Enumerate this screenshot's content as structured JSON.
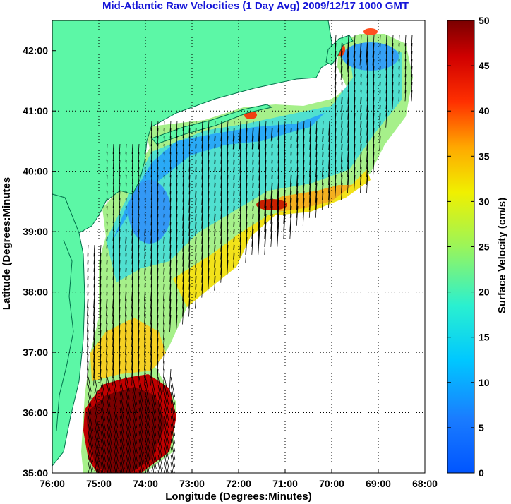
{
  "chart_data": {
    "type": "heatmap",
    "title": "Mid-Atlantic Raw Velocities (1 Day Avg) 2009/12/17 1000 GMT",
    "xlabel": "Longitude (Degrees:Minutes)",
    "ylabel": "Latitude (Degrees:Minutes",
    "x_ticks": [
      "76:00",
      "75:00",
      "74:00",
      "73:00",
      "72:00",
      "71:00",
      "70:00",
      "69:00",
      "68:00"
    ],
    "y_ticks": [
      "42:00",
      "41:00",
      "40:00",
      "39:00",
      "38:00",
      "37:00",
      "36:00",
      "35:00"
    ],
    "xlim_deg_west": [
      76,
      68
    ],
    "ylim_deg_north": [
      35,
      42.5
    ],
    "grid": true,
    "colorbar": {
      "label": "Surface Velocity (cm/s)",
      "range": [
        0,
        50
      ],
      "ticks": [
        "50",
        "45",
        "40",
        "35",
        "30",
        "25",
        "20",
        "15",
        "10",
        "5",
        "0"
      ],
      "colormap": "jet"
    },
    "land_color": "#5cf7a6",
    "arrow_color": "#000000",
    "velocity_field_cm_s": [
      {
        "lon": 75.0,
        "lat": 35.5,
        "value": 50
      },
      {
        "lon": 74.5,
        "lat": 35.6,
        "value": 48
      },
      {
        "lon": 74.2,
        "lat": 36.0,
        "value": 42
      },
      {
        "lon": 74.7,
        "lat": 36.8,
        "value": 25
      },
      {
        "lon": 74.8,
        "lat": 37.5,
        "value": 26
      },
      {
        "lon": 74.3,
        "lat": 37.8,
        "value": 27
      },
      {
        "lon": 74.5,
        "lat": 38.5,
        "value": 12
      },
      {
        "lon": 73.9,
        "lat": 38.9,
        "value": 18
      },
      {
        "lon": 74.2,
        "lat": 39.6,
        "value": 6
      },
      {
        "lon": 73.5,
        "lat": 39.5,
        "value": 12
      },
      {
        "lon": 73.0,
        "lat": 39.3,
        "value": 20
      },
      {
        "lon": 72.0,
        "lat": 39.7,
        "value": 15
      },
      {
        "lon": 71.2,
        "lat": 39.5,
        "value": 48
      },
      {
        "lon": 70.6,
        "lat": 39.7,
        "value": 33
      },
      {
        "lon": 70.0,
        "lat": 40.0,
        "value": 28
      },
      {
        "lon": 73.5,
        "lat": 40.5,
        "value": 8
      },
      {
        "lon": 72.5,
        "lat": 40.3,
        "value": 14
      },
      {
        "lon": 71.8,
        "lat": 40.4,
        "value": 16
      },
      {
        "lon": 71.0,
        "lat": 40.5,
        "value": 12
      },
      {
        "lon": 70.4,
        "lat": 40.6,
        "value": 17
      },
      {
        "lon": 71.7,
        "lat": 40.9,
        "value": 36
      },
      {
        "lon": 72.5,
        "lat": 40.9,
        "value": 15
      },
      {
        "lon": 69.8,
        "lat": 41.1,
        "value": 20
      },
      {
        "lon": 69.5,
        "lat": 41.8,
        "value": 9
      },
      {
        "lon": 69.0,
        "lat": 41.8,
        "value": 12
      },
      {
        "lon": 68.7,
        "lat": 42.0,
        "value": 10
      },
      {
        "lon": 69.9,
        "lat": 42.0,
        "value": 38
      },
      {
        "lon": 69.5,
        "lat": 42.2,
        "value": 40
      }
    ]
  }
}
